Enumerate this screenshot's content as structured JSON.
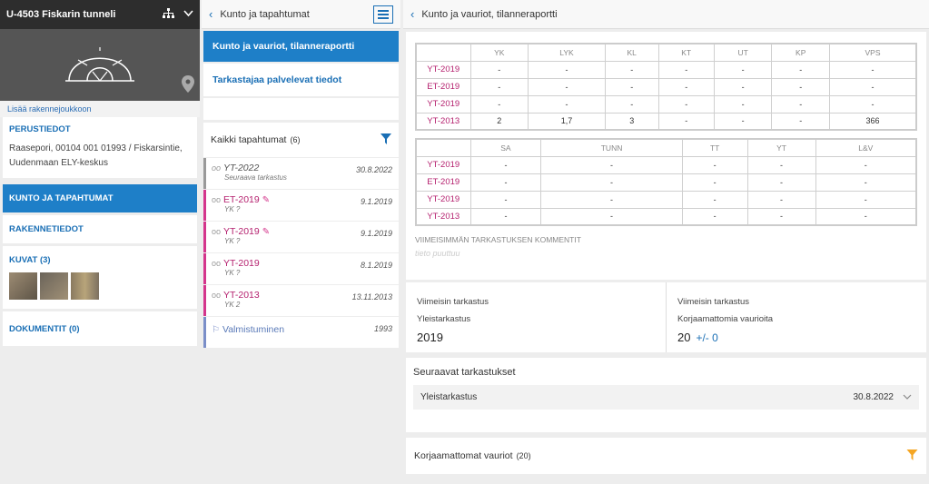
{
  "structure": {
    "title": "U-4503 Fiskarin tunneli",
    "add_link": "Lisää rakennejoukkoon"
  },
  "basic": {
    "title": "PERUSTIEDOT",
    "address": "Raasepori, 00104 001 01993 / Fiskarsintie, Uudenmaan ELY-keskus"
  },
  "nav": {
    "condition": "KUNTO JA TAPAHTUMAT",
    "structure_info": "RAKENNETIEDOT",
    "images": "KUVAT (3)",
    "documents": "DOKUMENTIT (0)"
  },
  "images": [
    "#8c7d6a",
    "#7a6f5e",
    "#9a8a70"
  ],
  "events_panel": {
    "title": "Kunto ja tapahtumat",
    "links": [
      "Kunto ja vauriot, tilanneraportti",
      "Tarkastajaa palvelevat tiedot"
    ],
    "list_title": "Kaikki tapahtumat",
    "list_count": "(6)",
    "items": [
      {
        "name": "YT-2022",
        "sub": "Seuraava tarkastus",
        "date": "30.8.2022",
        "pencil": false
      },
      {
        "name": "ET-2019",
        "sub": "YK ?",
        "date": "9.1.2019",
        "pencil": true
      },
      {
        "name": "YT-2019",
        "sub": "YK ?",
        "date": "9.1.2019",
        "pencil": true
      },
      {
        "name": "YT-2019",
        "sub": "YK ?",
        "date": "8.1.2019",
        "pencil": false
      },
      {
        "name": "YT-2013",
        "sub": "YK 2",
        "date": "13.11.2013",
        "pencil": false
      },
      {
        "name": "Valmistuminen",
        "sub": "",
        "date": "1993",
        "pencil": false
      }
    ]
  },
  "report": {
    "title": "Kunto ja vauriot, tilanneraportti",
    "table1": {
      "headers": [
        "",
        "YK",
        "LYK",
        "KL",
        "KT",
        "UT",
        "KP",
        "VPS"
      ],
      "rows": [
        [
          "YT-2019",
          "-",
          "-",
          "-",
          "-",
          "-",
          "-",
          "-"
        ],
        [
          "ET-2019",
          "-",
          "-",
          "-",
          "-",
          "-",
          "-",
          "-"
        ],
        [
          "YT-2019",
          "-",
          "-",
          "-",
          "-",
          "-",
          "-",
          "-"
        ],
        [
          "YT-2013",
          "2",
          "1,7",
          "3",
          "-",
          "-",
          "-",
          "366"
        ]
      ]
    },
    "table2": {
      "headers": [
        "",
        "SA",
        "TUNN",
        "TT",
        "YT",
        "L&V"
      ],
      "rows": [
        [
          "YT-2019",
          "-",
          "-",
          "-",
          "-",
          "-"
        ],
        [
          "ET-2019",
          "-",
          "-",
          "-",
          "-",
          "-"
        ],
        [
          "YT-2019",
          "-",
          "-",
          "-",
          "-",
          "-"
        ],
        [
          "YT-2013",
          "-",
          "-",
          "-",
          "-",
          "-"
        ]
      ]
    },
    "comment_label": "VIIMEISIMMÄN TARKASTUKSEN KOMMENTIT",
    "comment_value": "tieto puuttuu",
    "last_left": {
      "label": "Viimeisin tarkastus",
      "type": "Yleistarkastus",
      "value": "2019"
    },
    "last_right": {
      "label": "Viimeisin tarkastus",
      "type": "Korjaamattomia vaurioita",
      "value": "20",
      "delta": "+/- 0"
    },
    "next": {
      "title": "Seuraavat tarkastukset",
      "type": "Yleistarkastus",
      "date": "30.8.2022"
    },
    "unfixed": {
      "title": "Korjaamattomat vauriot",
      "count": "(20)"
    }
  },
  "colors": {
    "accent": "#1e7fc8",
    "event_pink": "#d4358c",
    "filter_orange": "#f5a623"
  }
}
